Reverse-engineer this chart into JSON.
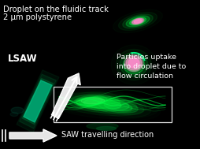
{
  "bg_color": "#000000",
  "title_line1": "Droplet on the fluidic track",
  "title_line2": "2 μm polystyrene",
  "lsaw_label": "LSAW",
  "particles_label": "Particles uptake\ninto droplet due to\nflow circulation",
  "saw_label": "SAW travelling direction",
  "text_color": "#ffffff",
  "title_fontsize": 7.2,
  "label_fontsize": 7.5,
  "small_fontsize": 6.8,
  "saw_fontsize": 7.0,
  "figw": 2.54,
  "figh": 1.89,
  "dpi": 100
}
